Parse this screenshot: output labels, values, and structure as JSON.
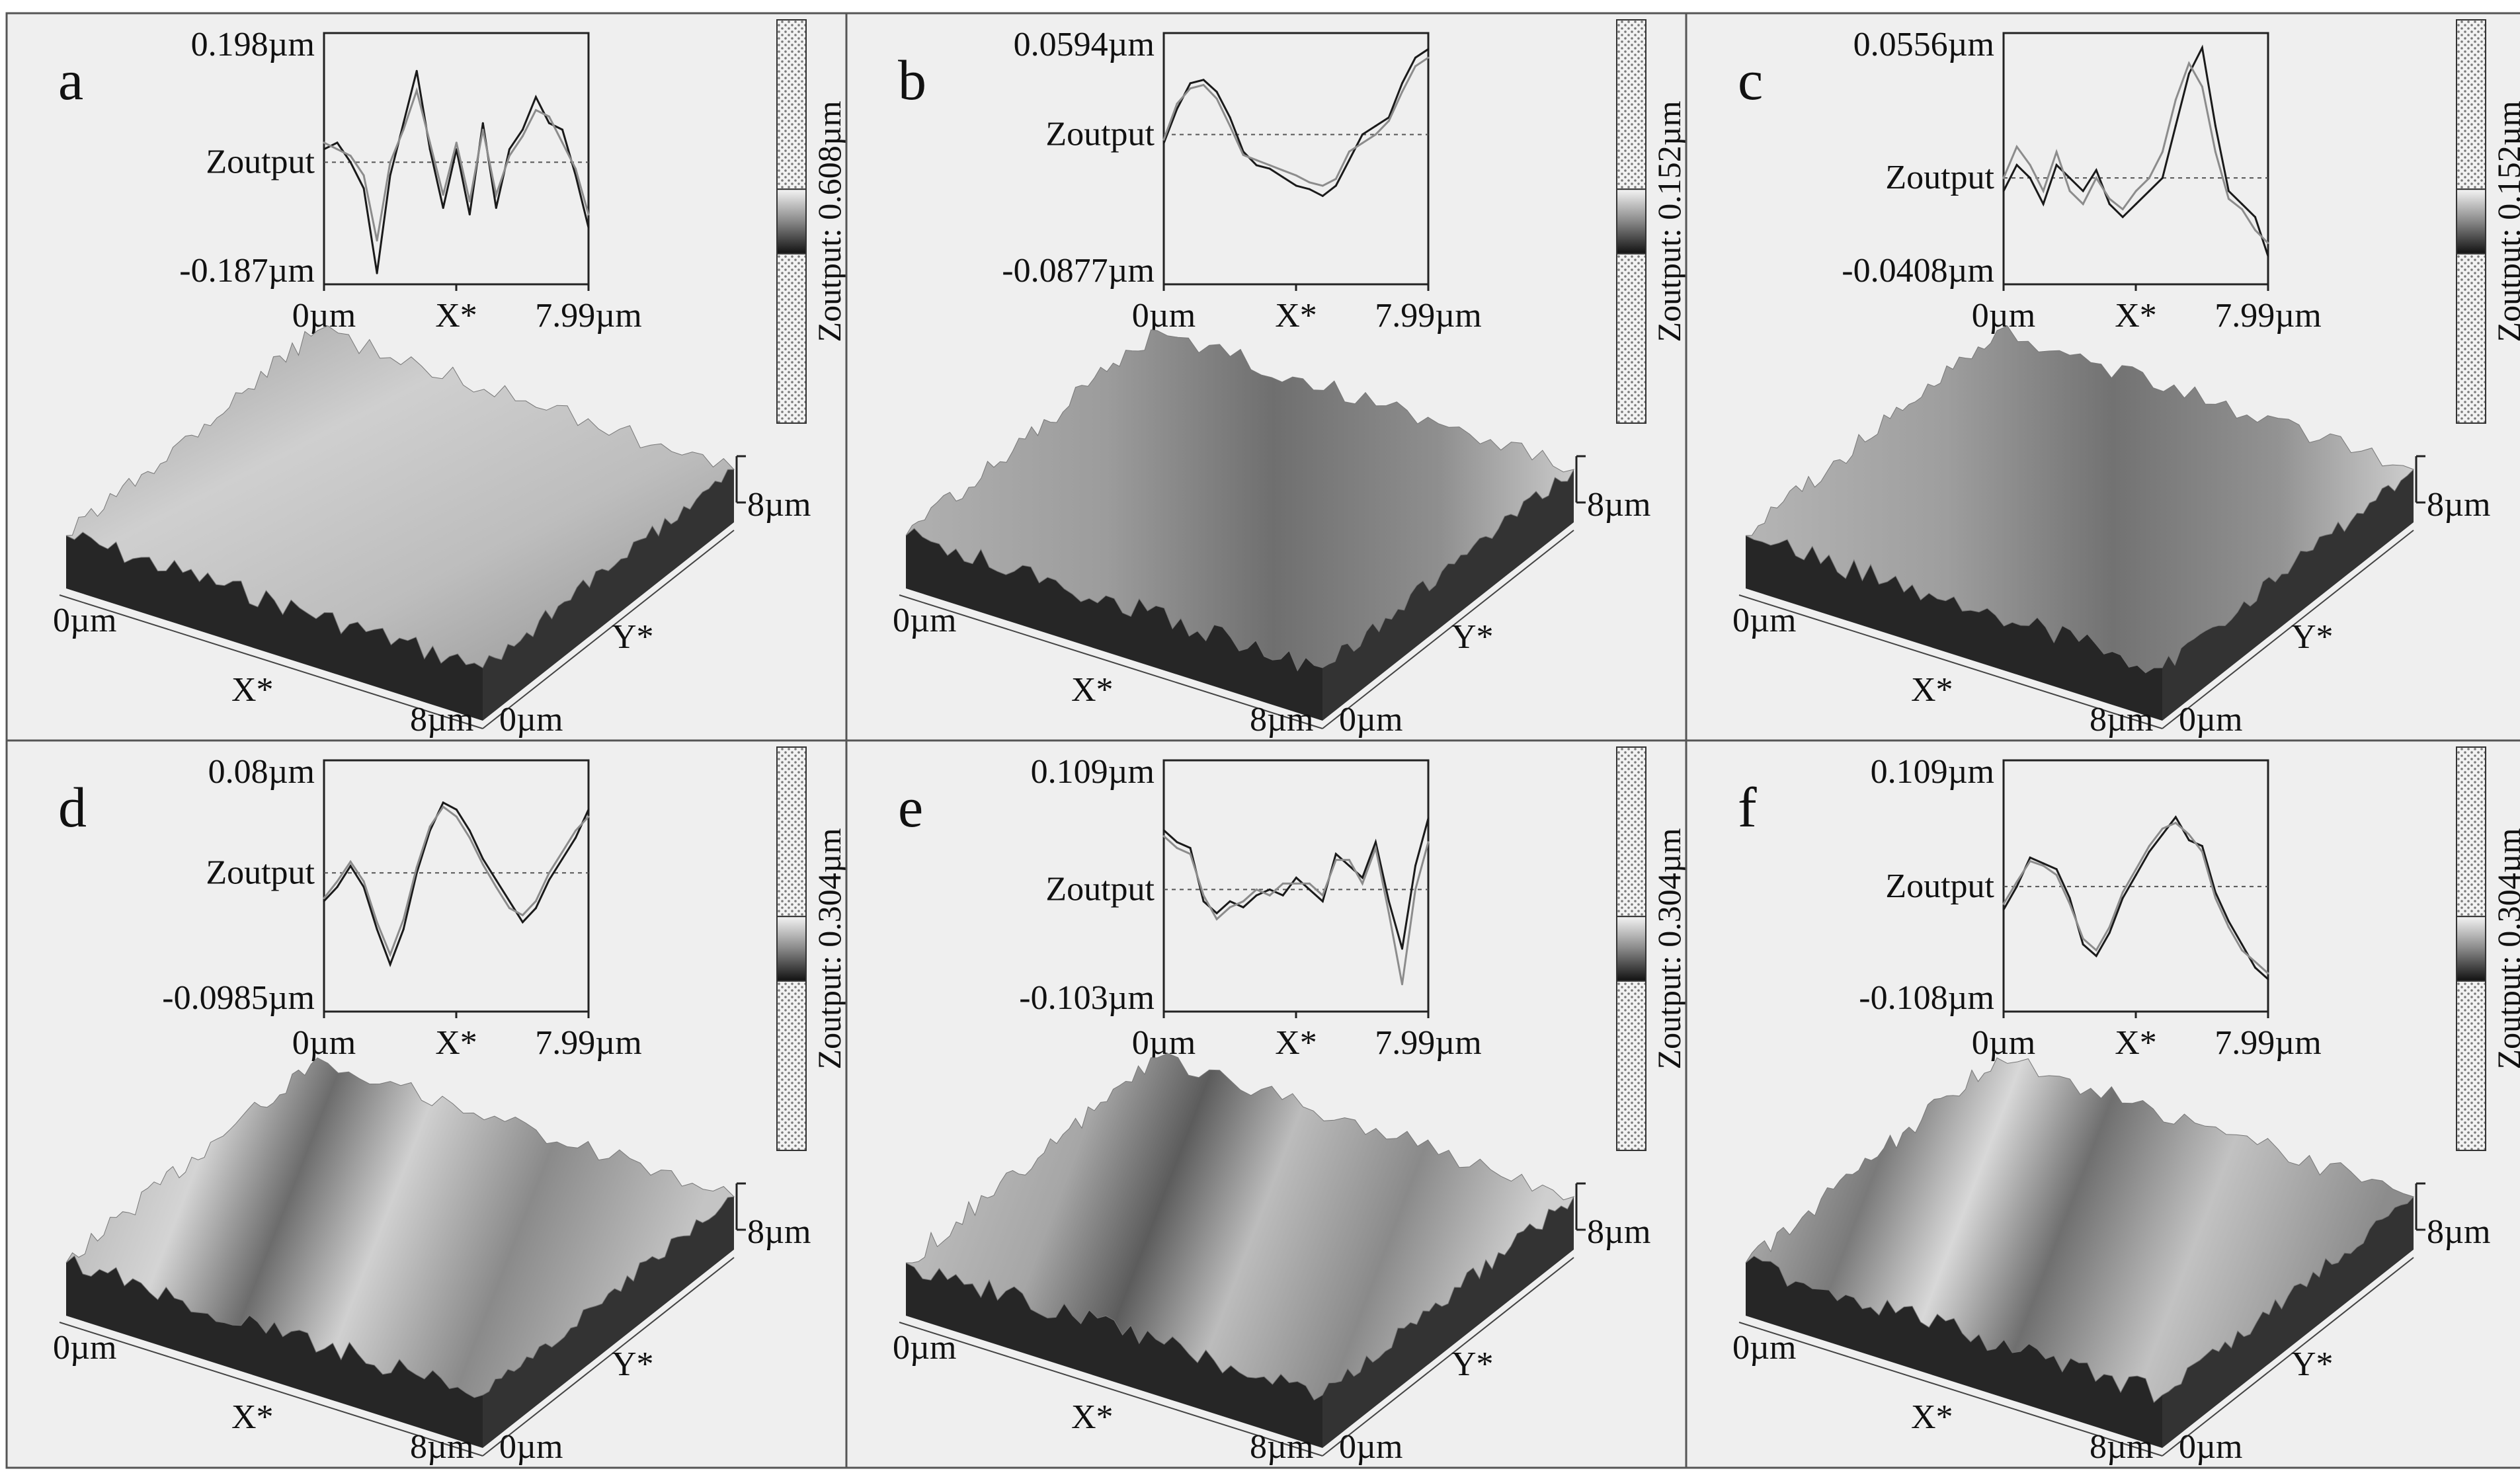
{
  "figure": {
    "panels": [
      {
        "letter": "a",
        "profile": {
          "y_max": "0.198µm",
          "y_mid": "Zoutput",
          "y_min": "-0.187µm",
          "x_start": "0µm",
          "x_mid": "X*",
          "x_end": "7.99µm"
        },
        "colorbar": "Zoutput: 0.608µm",
        "surface": {
          "x_start": "0µm",
          "x_label": "X*",
          "x_end": "8µm",
          "y_start": "0µm",
          "y_label": "Y*",
          "y_end": "8µm"
        }
      },
      {
        "letter": "b",
        "profile": {
          "y_max": "0.0594µm",
          "y_mid": "Zoutput",
          "y_min": "-0.0877µm",
          "x_start": "0µm",
          "x_mid": "X*",
          "x_end": "7.99µm"
        },
        "colorbar": "Zoutput: 0.152µm",
        "surface": {
          "x_start": "0µm",
          "x_label": "X*",
          "x_end": "8µm",
          "y_start": "0µm",
          "y_label": "Y*",
          "y_end": "8µm"
        }
      },
      {
        "letter": "c",
        "profile": {
          "y_max": "0.0556µm",
          "y_mid": "Zoutput",
          "y_min": "-0.0408µm",
          "x_start": "0µm",
          "x_mid": "X*",
          "x_end": "7.99µm"
        },
        "colorbar": "Zoutput: 0.152µm",
        "surface": {
          "x_start": "0µm",
          "x_label": "X*",
          "x_end": "8µm",
          "y_start": "0µm",
          "y_label": "Y*",
          "y_end": "8µm"
        }
      },
      {
        "letter": "d",
        "profile": {
          "y_max": "0.08µm",
          "y_mid": "Zoutput",
          "y_min": "-0.0985µm",
          "x_start": "0µm",
          "x_mid": "X*",
          "x_end": "7.99µm"
        },
        "colorbar": "Zoutput: 0.304µm",
        "surface": {
          "x_start": "0µm",
          "x_label": "X*",
          "x_end": "8µm",
          "y_start": "0µm",
          "y_label": "Y*",
          "y_end": "8µm"
        }
      },
      {
        "letter": "e",
        "profile": {
          "y_max": "0.109µm",
          "y_mid": "Zoutput",
          "y_min": "-0.103µm",
          "x_start": "0µm",
          "x_mid": "X*",
          "x_end": "7.99µm"
        },
        "colorbar": "Zoutput: 0.304µm",
        "surface": {
          "x_start": "0µm",
          "x_label": "X*",
          "x_end": "8µm",
          "y_start": "0µm",
          "y_label": "Y*",
          "y_end": "8µm"
        }
      },
      {
        "letter": "f",
        "profile": {
          "y_max": "0.109µm",
          "y_mid": "Zoutput",
          "y_min": "-0.108µm",
          "x_start": "0µm",
          "x_mid": "X*",
          "x_end": "7.99µm"
        },
        "colorbar": "Zoutput: 0.304µm",
        "surface": {
          "x_start": "0µm",
          "x_label": "X*",
          "x_end": "8µm",
          "y_start": "0µm",
          "y_label": "Y*",
          "y_end": "8µm"
        }
      }
    ]
  },
  "chart_data": [
    {
      "type": "line",
      "panel": "a",
      "x_range": [
        0,
        7.99
      ],
      "ylim": [
        -0.187,
        0.198
      ],
      "x": [
        0,
        0.4,
        0.8,
        1.2,
        1.6,
        2.0,
        2.4,
        2.8,
        3.2,
        3.6,
        4.0,
        4.4,
        4.8,
        5.2,
        5.6,
        6.0,
        6.4,
        6.8,
        7.2,
        7.6,
        7.99
      ],
      "series": [
        {
          "values": [
            0.02,
            0.03,
            0.0,
            -0.04,
            -0.17,
            -0.02,
            0.06,
            0.14,
            0.02,
            -0.07,
            0.02,
            -0.08,
            0.06,
            -0.07,
            0.02,
            0.05,
            0.1,
            0.06,
            0.05,
            -0.02,
            -0.1
          ]
        },
        {
          "values": [
            0.03,
            0.02,
            0.01,
            -0.02,
            -0.12,
            0.0,
            0.05,
            0.11,
            0.03,
            -0.05,
            0.03,
            -0.06,
            0.05,
            -0.05,
            0.01,
            0.04,
            0.08,
            0.07,
            0.03,
            -0.01,
            -0.08
          ]
        }
      ]
    },
    {
      "type": "line",
      "panel": "b",
      "x_range": [
        0,
        7.99
      ],
      "ylim": [
        -0.0877,
        0.0594
      ],
      "x": [
        0,
        0.4,
        0.8,
        1.2,
        1.6,
        2.0,
        2.4,
        2.8,
        3.2,
        3.6,
        4.0,
        4.4,
        4.8,
        5.2,
        5.6,
        6.0,
        6.4,
        6.8,
        7.2,
        7.6,
        7.99
      ],
      "series": [
        {
          "values": [
            -0.005,
            0.015,
            0.03,
            0.032,
            0.025,
            0.01,
            -0.01,
            -0.018,
            -0.02,
            -0.025,
            -0.03,
            -0.032,
            -0.036,
            -0.03,
            -0.015,
            0.0,
            0.005,
            0.01,
            0.03,
            0.045,
            0.05
          ]
        },
        {
          "values": [
            -0.003,
            0.018,
            0.027,
            0.029,
            0.021,
            0.005,
            -0.012,
            -0.015,
            -0.018,
            -0.021,
            -0.024,
            -0.028,
            -0.03,
            -0.026,
            -0.01,
            -0.005,
            0.0,
            0.008,
            0.025,
            0.04,
            0.045
          ]
        }
      ]
    },
    {
      "type": "line",
      "panel": "c",
      "x_range": [
        0,
        7.99
      ],
      "ylim": [
        -0.0408,
        0.0556
      ],
      "x": [
        0,
        0.4,
        0.8,
        1.2,
        1.6,
        2.0,
        2.4,
        2.8,
        3.2,
        3.6,
        4.0,
        4.4,
        4.8,
        5.2,
        5.6,
        6.0,
        6.4,
        6.8,
        7.2,
        7.6,
        7.99
      ],
      "series": [
        {
          "values": [
            -0.005,
            0.005,
            0.0,
            -0.01,
            0.005,
            0.0,
            -0.005,
            0.003,
            -0.01,
            -0.015,
            -0.01,
            -0.005,
            0.0,
            0.02,
            0.04,
            0.05,
            0.02,
            -0.005,
            -0.01,
            -0.015,
            -0.03
          ]
        },
        {
          "values": [
            0.0,
            0.012,
            0.005,
            -0.005,
            0.01,
            -0.005,
            -0.01,
            0.0,
            -0.008,
            -0.012,
            -0.005,
            0.0,
            0.01,
            0.03,
            0.044,
            0.035,
            0.01,
            -0.008,
            -0.012,
            -0.02,
            -0.025
          ]
        }
      ]
    },
    {
      "type": "line",
      "panel": "d",
      "x_range": [
        0,
        7.99
      ],
      "ylim": [
        -0.0985,
        0.08
      ],
      "x": [
        0,
        0.4,
        0.8,
        1.2,
        1.6,
        2.0,
        2.4,
        2.8,
        3.2,
        3.6,
        4.0,
        4.4,
        4.8,
        5.2,
        5.6,
        6.0,
        6.4,
        6.8,
        7.2,
        7.6,
        7.99
      ],
      "series": [
        {
          "values": [
            -0.02,
            -0.01,
            0.005,
            -0.01,
            -0.04,
            -0.065,
            -0.04,
            0.0,
            0.03,
            0.05,
            0.045,
            0.03,
            0.01,
            -0.005,
            -0.02,
            -0.035,
            -0.025,
            -0.005,
            0.01,
            0.025,
            0.045
          ]
        },
        {
          "values": [
            -0.018,
            -0.006,
            0.008,
            -0.006,
            -0.035,
            -0.058,
            -0.033,
            0.004,
            0.033,
            0.047,
            0.04,
            0.025,
            0.006,
            -0.01,
            -0.025,
            -0.03,
            -0.02,
            0.0,
            0.015,
            0.03,
            0.04
          ]
        }
      ]
    },
    {
      "type": "line",
      "panel": "e",
      "x_range": [
        0,
        7.99
      ],
      "ylim": [
        -0.103,
        0.109
      ],
      "x": [
        0,
        0.4,
        0.8,
        1.2,
        1.6,
        2.0,
        2.4,
        2.8,
        3.2,
        3.6,
        4.0,
        4.4,
        4.8,
        5.2,
        5.6,
        6.0,
        6.4,
        6.8,
        7.2,
        7.6,
        7.99
      ],
      "series": [
        {
          "values": [
            0.05,
            0.04,
            0.035,
            -0.01,
            -0.02,
            -0.01,
            -0.015,
            -0.005,
            0.0,
            -0.005,
            0.01,
            0.0,
            -0.01,
            0.03,
            0.02,
            0.01,
            0.04,
            -0.01,
            -0.05,
            0.02,
            0.06
          ]
        },
        {
          "values": [
            0.045,
            0.035,
            0.03,
            -0.005,
            -0.025,
            -0.015,
            -0.01,
            0.0,
            -0.005,
            0.005,
            0.005,
            0.005,
            -0.005,
            0.025,
            0.025,
            0.005,
            0.035,
            -0.02,
            -0.08,
            0.0,
            0.04
          ]
        }
      ]
    },
    {
      "type": "line",
      "panel": "f",
      "x_range": [
        0,
        7.99
      ],
      "ylim": [
        -0.108,
        0.109
      ],
      "x": [
        0,
        0.4,
        0.8,
        1.2,
        1.6,
        2.0,
        2.4,
        2.8,
        3.2,
        3.6,
        4.0,
        4.4,
        4.8,
        5.2,
        5.6,
        6.0,
        6.4,
        6.8,
        7.2,
        7.6,
        7.99
      ],
      "series": [
        {
          "values": [
            -0.02,
            0.0,
            0.025,
            0.02,
            0.015,
            -0.01,
            -0.05,
            -0.06,
            -0.04,
            -0.01,
            0.01,
            0.03,
            0.045,
            0.06,
            0.04,
            0.035,
            -0.005,
            -0.03,
            -0.05,
            -0.07,
            -0.08
          ]
        },
        {
          "values": [
            -0.015,
            0.004,
            0.022,
            0.018,
            0.01,
            -0.015,
            -0.045,
            -0.055,
            -0.035,
            -0.005,
            0.015,
            0.035,
            0.05,
            0.055,
            0.045,
            0.03,
            -0.01,
            -0.035,
            -0.055,
            -0.065,
            -0.075
          ]
        }
      ]
    }
  ]
}
